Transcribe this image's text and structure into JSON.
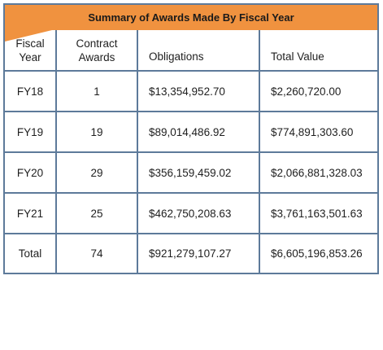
{
  "table": {
    "title": "Summary of Awards Made By Fiscal Year",
    "headers": {
      "fiscal_year": "Fiscal\nYear",
      "contract_awards": "Contract\nAwards",
      "obligations": "Obligations",
      "total_value": "Total Value"
    },
    "rows": [
      {
        "fiscal_year": "FY18",
        "contract_awards": "1",
        "obligations": "$13,354,952.70",
        "total_value": "$2,260,720.00"
      },
      {
        "fiscal_year": "FY19",
        "contract_awards": "19",
        "obligations": "$89,014,486.92",
        "total_value": "$774,891,303.60"
      },
      {
        "fiscal_year": "FY20",
        "contract_awards": "29",
        "obligations": "$356,159,459.02",
        "total_value": "$2,066,881,328.03"
      },
      {
        "fiscal_year": "FY21",
        "contract_awards": "25",
        "obligations": "$462,750,208.63",
        "total_value": "$3,761,163,501.63"
      },
      {
        "fiscal_year": "Total",
        "contract_awards": "74",
        "obligations": "$921,279,107.27",
        "total_value": "$6,605,196,853.26"
      }
    ],
    "colors": {
      "title_bar": "#f0923f",
      "border": "#5d7a9a"
    }
  }
}
